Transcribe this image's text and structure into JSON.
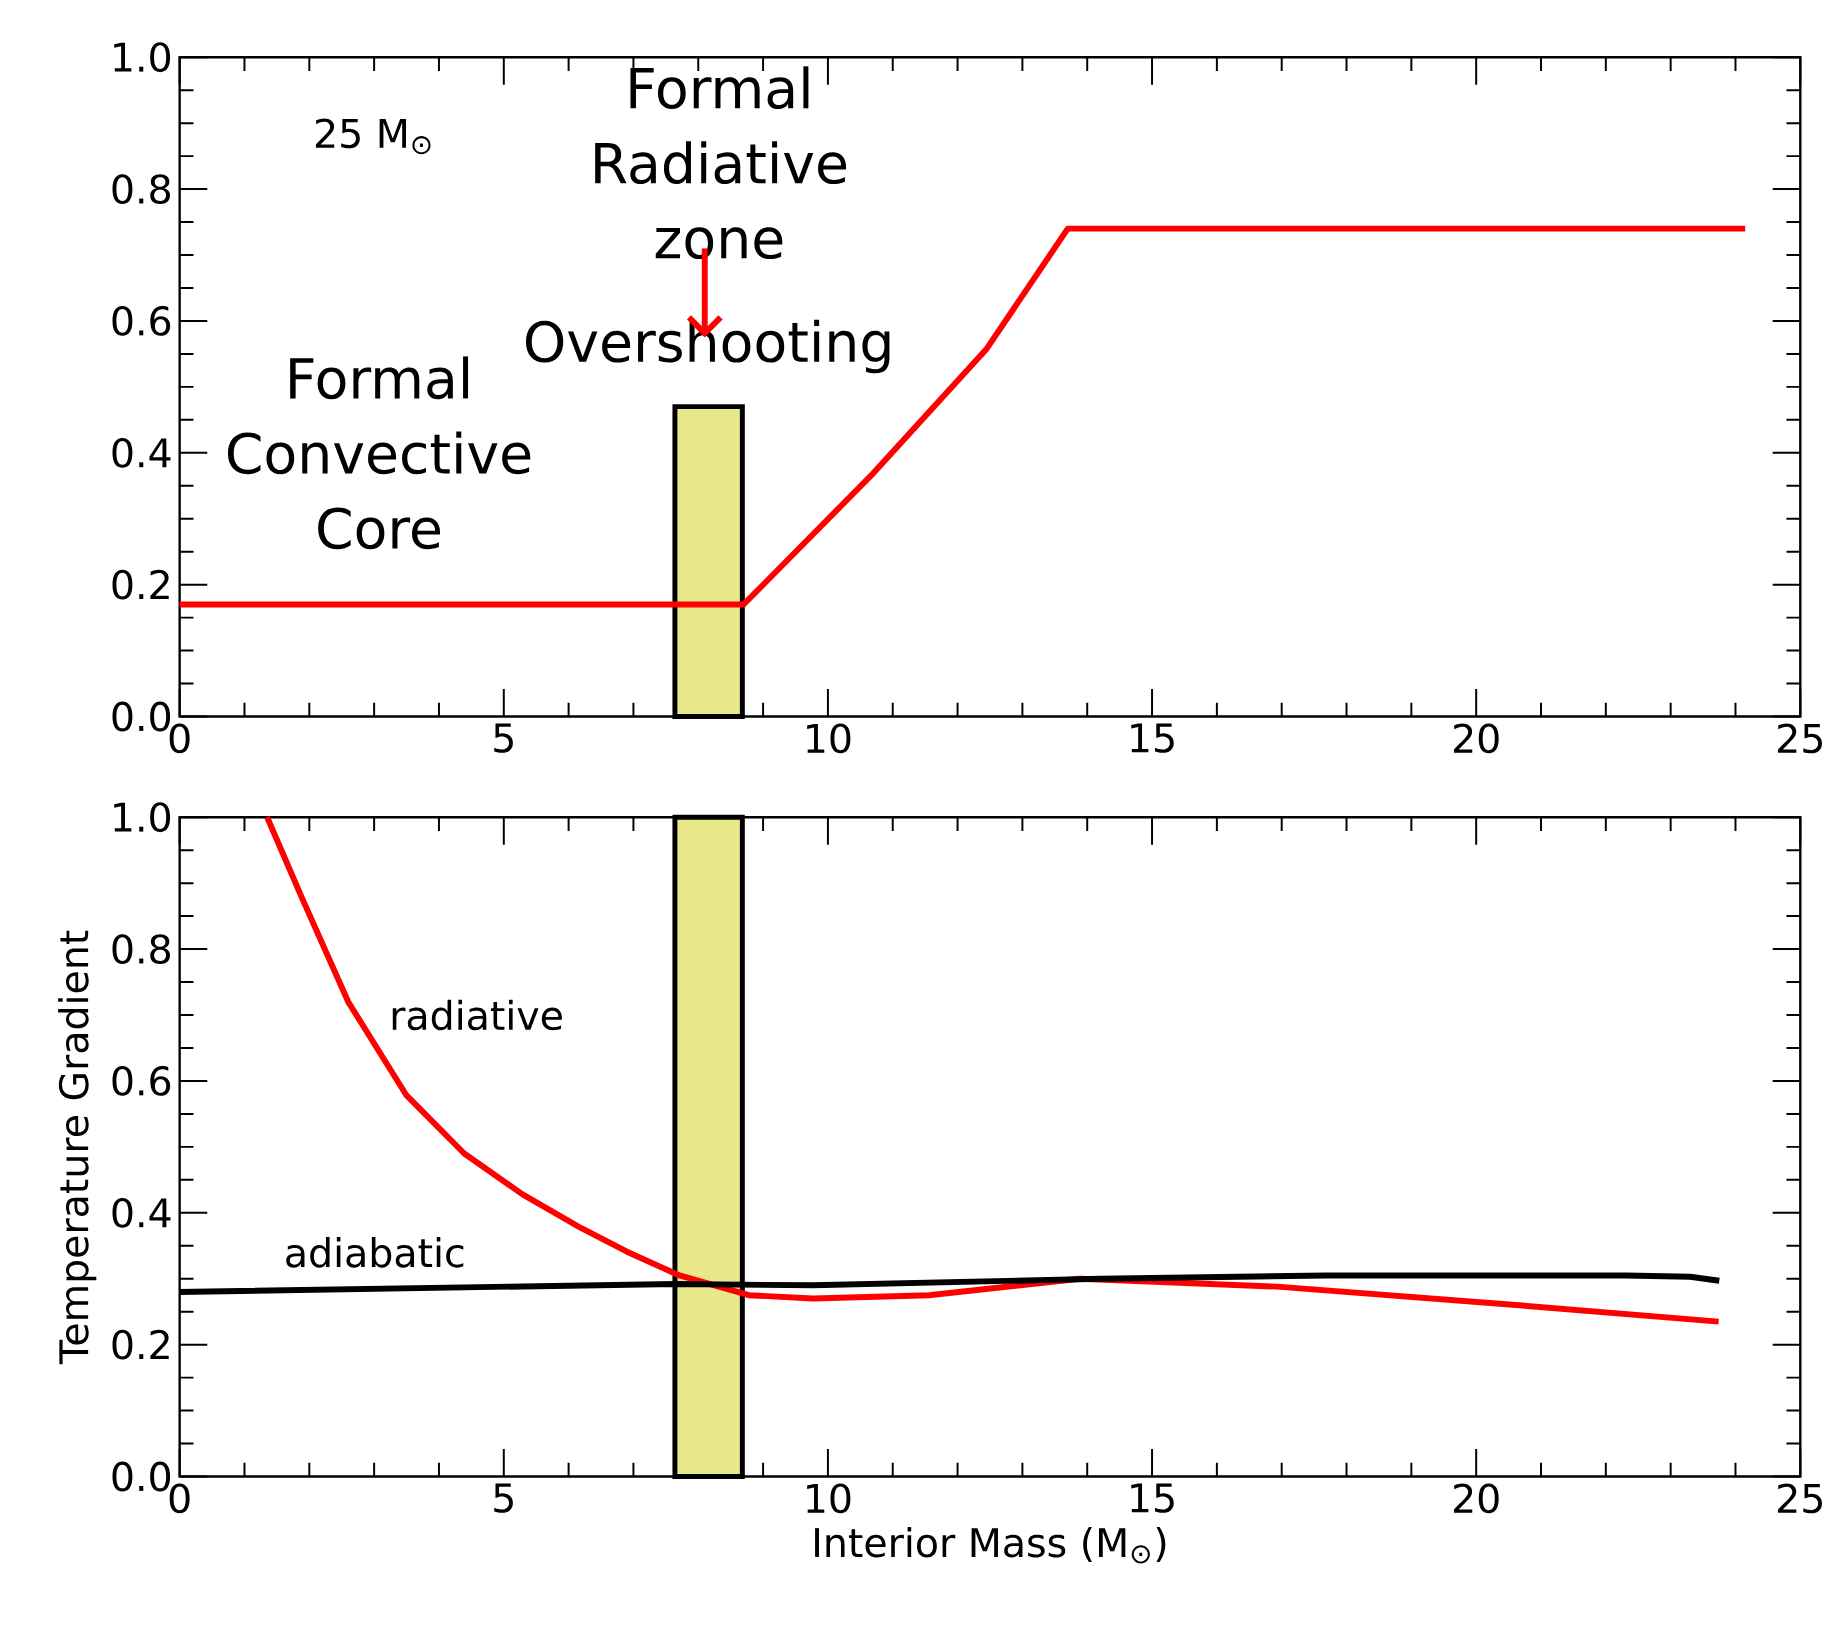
{
  "chart_data": [
    {
      "type": "line",
      "annotations": [
        "25 M$_{⊙}$",
        "Formal Convective Core",
        "Formal Radiative zone"
      ],
      "series": [
        {
          "color": "#ff0000",
          "x": [
            0,
            8.7,
            10.66,
            12.45,
            13.7,
            24.15
          ],
          "values": [
            0.17,
            0.17,
            0.365,
            0.558,
            0.74,
            0.74
          ]
        }
      ],
      "bands": [
        {
          "axis": "x",
          "from": 7.64,
          "to": 8.68,
          "label": "Overshooting",
          "color": "#e8e88a"
        }
      ],
      "xlim": [
        0,
        25
      ],
      "ylim": [
        0,
        1
      ],
      "xticks": [
        0,
        5,
        10,
        15,
        20,
        25
      ],
      "yticks": [
        {
          "value": 0,
          "label": "0.0"
        },
        {
          "value": 0.2,
          "label": "0.2"
        },
        {
          "value": 0.4,
          "label": "0.4"
        },
        {
          "value": 0.6,
          "label": "0.6"
        },
        {
          "value": 0.8,
          "label": "0.8"
        },
        {
          "value": 1,
          "label": "1.0"
        }
      ]
    },
    {
      "type": "line",
      "xlabel": "Interior Mass (M$_{⊙}$)",
      "ylabel": "Temperature Gradient",
      "series": [
        {
          "name": "radiative",
          "color": "#ff0000",
          "x": [
            1.35,
            1.89,
            2.6,
            3.5,
            4.39,
            5.29,
            6.19,
            6.9,
            7.71,
            8.78,
            9.77,
            11.56,
            13.89,
            16.93,
            20.51,
            23.74
          ],
          "values": [
            1.0,
            0.877,
            0.72,
            0.578,
            0.49,
            0.428,
            0.377,
            0.341,
            0.305,
            0.275,
            0.27,
            0.275,
            0.3,
            0.288,
            0.261,
            0.235
          ]
        },
        {
          "name": "adiabatic",
          "color": "#000000",
          "x": [
            0,
            7.64,
            9.77,
            14.2,
            17.7,
            22.3,
            23.3,
            23.75
          ],
          "values": [
            0.28,
            0.292,
            0.29,
            0.3,
            0.305,
            0.305,
            0.303,
            0.297
          ]
        }
      ],
      "bands": [
        {
          "axis": "x",
          "from": 7.64,
          "to": 8.68,
          "color": "#e8e88a"
        }
      ],
      "xlim": [
        0,
        25
      ],
      "ylim": [
        0,
        1
      ],
      "xticks": [
        0,
        5,
        10,
        15,
        20,
        25
      ],
      "yticks": [
        {
          "value": 0,
          "label": "0.0"
        },
        {
          "value": 0.2,
          "label": "0.2"
        },
        {
          "value": 0.4,
          "label": "0.4"
        },
        {
          "value": 0.6,
          "label": "0.6"
        },
        {
          "value": 0.8,
          "label": "0.8"
        },
        {
          "value": 1,
          "label": "1.0"
        }
      ]
    }
  ]
}
